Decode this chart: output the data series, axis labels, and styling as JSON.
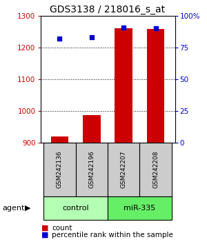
{
  "title": "GDS3138 / 218016_s_at",
  "samples": [
    "GSM242136",
    "GSM242196",
    "GSM242207",
    "GSM242208"
  ],
  "counts": [
    920,
    988,
    1261,
    1258
  ],
  "percentiles": [
    82,
    83,
    91,
    90
  ],
  "ylim_left": [
    900,
    1300
  ],
  "yticks_left": [
    900,
    1000,
    1100,
    1200,
    1300
  ],
  "ylim_right": [
    0,
    100
  ],
  "yticks_right": [
    0,
    25,
    50,
    75,
    100
  ],
  "ytick_right_labels": [
    "0",
    "25",
    "50",
    "75",
    "100%"
  ],
  "bar_color": "#cc0000",
  "dot_color": "#0000cc",
  "bar_width": 0.55,
  "sample_box_color": "#cccccc",
  "control_color": "#b3ffb3",
  "mir_color": "#66ee66",
  "title_fontsize": 10,
  "tick_fontsize": 7.5,
  "legend_fontsize": 7.5,
  "left_tick_color": "#cc0000",
  "right_tick_color": "#0000cc",
  "grid_yticks": [
    1000,
    1100,
    1200
  ]
}
